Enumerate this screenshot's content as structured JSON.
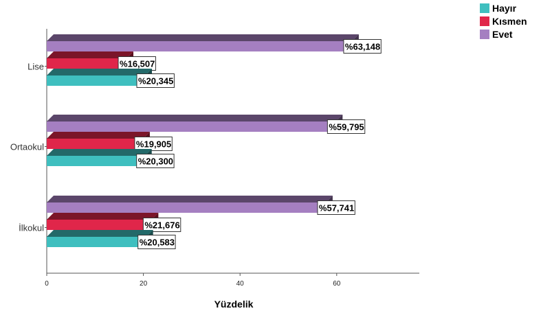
{
  "chart_data": {
    "type": "bar",
    "orientation": "horizontal",
    "style": "3d-clustered",
    "categories": [
      "Lise",
      "Ortaokul",
      "İlkokul"
    ],
    "series": [
      {
        "name": "Evet",
        "color": "#a57fc1",
        "values": [
          63.148,
          59.795,
          57.741
        ],
        "labels": [
          "%63,148",
          "%59,795",
          "%57,741"
        ]
      },
      {
        "name": "Kısmen",
        "color": "#e0264a",
        "values": [
          16.507,
          19.905,
          21.676
        ],
        "labels": [
          "%16,507",
          "%19,905",
          "%21,676"
        ]
      },
      {
        "name": "Hayır",
        "color": "#3fbfbf",
        "values": [
          20.345,
          20.3,
          20.583
        ],
        "labels": [
          "%20,345",
          "%20,300",
          "%20,583"
        ]
      }
    ],
    "xlabel": "Yüzdelik",
    "ylabel": "",
    "xlim": [
      0,
      78
    ],
    "xticks": [
      0,
      20,
      40,
      60
    ],
    "grid": false,
    "legend_position": "top-right"
  },
  "legend": {
    "items": [
      {
        "label": "Hayır",
        "color": "#3fbfbf"
      },
      {
        "label": "Kısmen",
        "color": "#e0264a"
      },
      {
        "label": "Evet",
        "color": "#a57fc1"
      }
    ]
  }
}
